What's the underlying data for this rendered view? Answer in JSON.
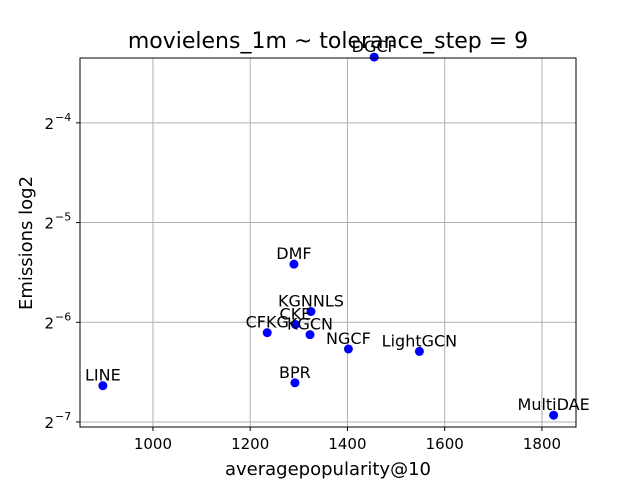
{
  "chart_data": {
    "type": "scatter",
    "title": "movielens_1m ~ tolerance_step = 9",
    "xlabel": "averagepopularity@10",
    "ylabel": "Emissions log2",
    "y_scale": "log2",
    "xlim": [
      850,
      1870
    ],
    "ylim_exp": [
      -7.05,
      -3.35
    ],
    "grid": true,
    "marker_color": "#0000ff",
    "x_ticks": [
      {
        "value": 1000,
        "label": "1000"
      },
      {
        "value": 1200,
        "label": "1200"
      },
      {
        "value": 1400,
        "label": "1400"
      },
      {
        "value": 1600,
        "label": "1600"
      },
      {
        "value": 1800,
        "label": "1800"
      }
    ],
    "y_ticks": [
      {
        "exp": -4,
        "base": "2",
        "sup": "−4"
      },
      {
        "exp": -5,
        "base": "2",
        "sup": "−5"
      },
      {
        "exp": -6,
        "base": "2",
        "sup": "−6"
      },
      {
        "exp": -7,
        "base": "2",
        "sup": "−7"
      }
    ],
    "points": [
      {
        "label": "DGCF",
        "x": 1455,
        "y": 0.0987
      },
      {
        "label": "DMF",
        "x": 1290,
        "y": 0.0234
      },
      {
        "label": "KGNNLS",
        "x": 1325,
        "y": 0.01684
      },
      {
        "label": "CKE",
        "x": 1293,
        "y": 0.01539
      },
      {
        "label": "CFKG",
        "x": 1235,
        "y": 0.01454
      },
      {
        "label": "KGCN",
        "x": 1323,
        "y": 0.01434
      },
      {
        "label": "NGCF",
        "x": 1402,
        "y": 0.01298
      },
      {
        "label": "LightGCN",
        "x": 1548,
        "y": 0.01276
      },
      {
        "label": "LINE",
        "x": 897,
        "y": 0.01006
      },
      {
        "label": "BPR",
        "x": 1292,
        "y": 0.01026
      },
      {
        "label": "MultiDAE",
        "x": 1824,
        "y": 0.00819
      }
    ]
  }
}
